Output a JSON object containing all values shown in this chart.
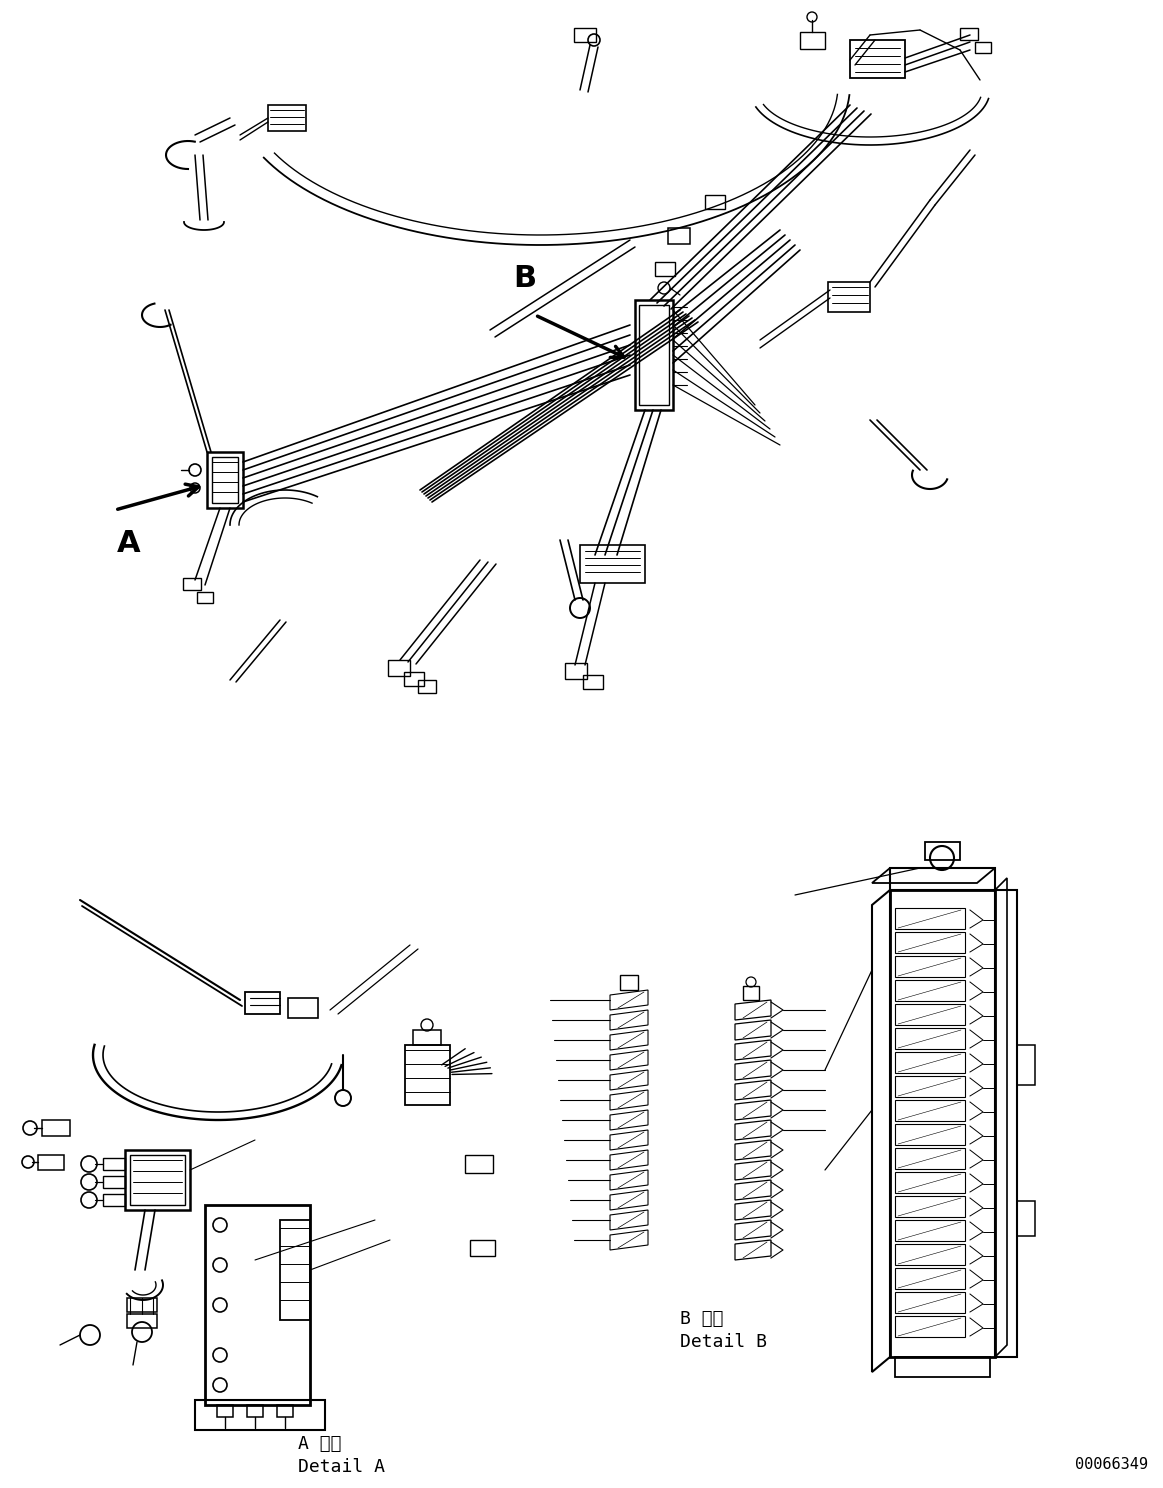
{
  "background_color": "#ffffff",
  "line_color": "#000000",
  "text_color": "#000000",
  "part_number": "00066349",
  "label_A": "A",
  "label_B": "B",
  "detail_A_japanese": "A 詳細",
  "detail_A_english": "Detail A",
  "detail_B_japanese": "B 詳細",
  "detail_B_english": "Detail B",
  "figwidth": 11.63,
  "figheight": 14.88,
  "dpi": 100
}
